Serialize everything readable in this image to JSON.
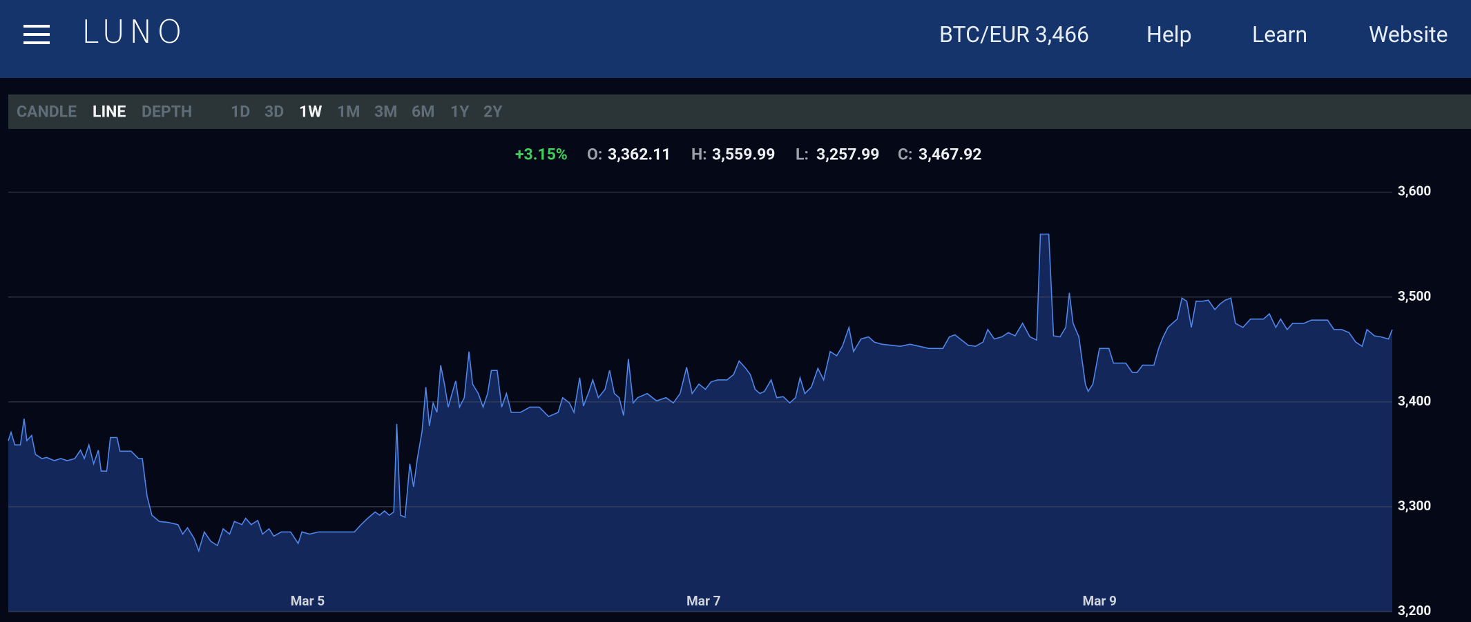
{
  "header": {
    "logo": "LUNO",
    "nav": [
      "BTC/EUR 3,466",
      "Help",
      "Learn",
      "Website"
    ]
  },
  "toolbar": {
    "chart_types": [
      "CANDLE",
      "LINE",
      "DEPTH"
    ],
    "ranges": [
      "1D",
      "3D",
      "1W",
      "1M",
      "3M",
      "6M",
      "1Y",
      "2Y"
    ]
  },
  "stats": {
    "change": "+3.15%",
    "open_label": "O:",
    "open": "3,362.11",
    "high_label": "H:",
    "high": "3,559.99",
    "low_label": "L:",
    "low": "3,257.99",
    "close_label": "C:",
    "close": "3,467.92"
  },
  "chart_data": {
    "type": "area",
    "color": "#4f86ea",
    "area_color": "#13275a",
    "grid": true,
    "xlim": [
      3.488,
      10.478
    ],
    "xticks": [
      {
        "value": 5,
        "label": "Mar 5"
      },
      {
        "value": 7,
        "label": "Mar 7"
      },
      {
        "value": 9,
        "label": "Mar 9"
      }
    ],
    "ylim": [
      3200,
      3655
    ],
    "yticks": [
      {
        "value": 3200,
        "label": "3,200"
      },
      {
        "value": 3300,
        "label": "3,300"
      },
      {
        "value": 3400,
        "label": "3,400"
      },
      {
        "value": 3500,
        "label": "3,500"
      },
      {
        "value": 3600,
        "label": "3,600"
      }
    ],
    "x": [
      3.488,
      3.502,
      3.521,
      3.549,
      3.568,
      3.582,
      3.606,
      3.625,
      3.658,
      3.682,
      3.72,
      3.753,
      3.786,
      3.824,
      3.853,
      3.872,
      3.895,
      3.919,
      3.943,
      3.957,
      3.985,
      4.004,
      4.037,
      4.052,
      4.108,
      4.146,
      4.165,
      4.189,
      4.213,
      4.251,
      4.298,
      4.345,
      4.369,
      4.393,
      4.426,
      4.45,
      4.478,
      4.511,
      4.544,
      4.573,
      4.606,
      4.63,
      4.668,
      4.687,
      4.715,
      4.748,
      4.772,
      4.805,
      4.829,
      4.867,
      4.914,
      4.952,
      4.971,
      5.009,
      5.056,
      5.104,
      5.198,
      5.236,
      5.27,
      5.303,
      5.341,
      5.364,
      5.388,
      5.412,
      5.435,
      5.45,
      5.469,
      5.492,
      5.516,
      5.535,
      5.554,
      5.578,
      5.597,
      5.615,
      5.634,
      5.653,
      5.672,
      5.691,
      5.71,
      5.729,
      5.748,
      5.767,
      5.791,
      5.815,
      5.833,
      5.862,
      5.886,
      5.909,
      5.928,
      5.957,
      5.98,
      6.004,
      6.028,
      6.075,
      6.123,
      6.17,
      6.217,
      6.265,
      6.288,
      6.322,
      6.345,
      6.374,
      6.393,
      6.421,
      6.44,
      6.468,
      6.502,
      6.525,
      6.549,
      6.573,
      6.596,
      6.62,
      6.644,
      6.667,
      6.715,
      6.762,
      6.81,
      6.847,
      6.881,
      6.914,
      6.942,
      6.976,
      7.009,
      7.037,
      7.07,
      7.118,
      7.151,
      7.179,
      7.213,
      7.236,
      7.26,
      7.284,
      7.307,
      7.341,
      7.369,
      7.402,
      7.435,
      7.464,
      7.487,
      7.511,
      7.544,
      7.577,
      7.606,
      7.639,
      7.672,
      7.701,
      7.734,
      7.757,
      7.795,
      7.833,
      7.862,
      7.9,
      7.947,
      7.994,
      8.042,
      8.089,
      8.137,
      8.208,
      8.241,
      8.269,
      8.303,
      8.336,
      8.373,
      8.411,
      8.435,
      8.468,
      8.506,
      8.539,
      8.573,
      8.611,
      8.648,
      8.682,
      8.701,
      8.743,
      8.767,
      8.8,
      8.829,
      8.847,
      8.866,
      8.895,
      8.928,
      8.942,
      8.966,
      8.999,
      9.047,
      9.07,
      9.132,
      9.165,
      9.189,
      9.217,
      9.25,
      9.274,
      9.298,
      9.321,
      9.345,
      9.392,
      9.416,
      9.44,
      9.463,
      9.487,
      9.52,
      9.549,
      9.582,
      9.606,
      9.634,
      9.663,
      9.686,
      9.724,
      9.762,
      9.795,
      9.828,
      9.857,
      9.89,
      9.914,
      9.947,
      9.975,
      10.032,
      10.07,
      10.103,
      10.151,
      10.184,
      10.222,
      10.26,
      10.293,
      10.326,
      10.35,
      10.388,
      10.421,
      10.459,
      10.478
    ],
    "values": [
      3363,
      3371,
      3359,
      3359,
      3384,
      3363,
      3368,
      3350,
      3346,
      3347,
      3344,
      3346,
      3344,
      3346,
      3354,
      3346,
      3359,
      3341,
      3354,
      3334,
      3334,
      3366,
      3366,
      3353,
      3353,
      3346,
      3346,
      3310,
      3292,
      3286,
      3285,
      3283,
      3274,
      3280,
      3270,
      3258,
      3276,
      3267,
      3263,
      3279,
      3274,
      3286,
      3283,
      3289,
      3283,
      3287,
      3274,
      3279,
      3272,
      3276,
      3276,
      3265,
      3276,
      3274,
      3276,
      3276,
      3276,
      3276,
      3283,
      3289,
      3295,
      3292,
      3296,
      3292,
      3295,
      3379,
      3292,
      3290,
      3341,
      3319,
      3346,
      3372,
      3414,
      3377,
      3399,
      3390,
      3435,
      3417,
      3395,
      3408,
      3420,
      3395,
      3404,
      3448,
      3417,
      3408,
      3395,
      3408,
      3430,
      3430,
      3395,
      3408,
      3390,
      3390,
      3395,
      3395,
      3386,
      3390,
      3404,
      3399,
      3390,
      3423,
      3396,
      3410,
      3421,
      3404,
      3412,
      3430,
      3408,
      3404,
      3387,
      3441,
      3399,
      3404,
      3408,
      3401,
      3404,
      3399,
      3408,
      3433,
      3408,
      3417,
      3412,
      3419,
      3421,
      3421,
      3426,
      3439,
      3432,
      3426,
      3412,
      3408,
      3410,
      3421,
      3404,
      3405,
      3399,
      3404,
      3423,
      3408,
      3414,
      3432,
      3421,
      3448,
      3444,
      3453,
      3471,
      3448,
      3460,
      3462,
      3457,
      3455,
      3454,
      3453,
      3455,
      3453,
      3451,
      3451,
      3462,
      3464,
      3459,
      3454,
      3453,
      3457,
      3469,
      3460,
      3462,
      3466,
      3463,
      3475,
      3462,
      3459,
      3560,
      3560,
      3463,
      3462,
      3471,
      3504,
      3475,
      3462,
      3417,
      3410,
      3417,
      3451,
      3451,
      3437,
      3437,
      3428,
      3428,
      3435,
      3435,
      3435,
      3451,
      3462,
      3471,
      3479,
      3499,
      3496,
      3471,
      3496,
      3496,
      3497,
      3488,
      3493,
      3497,
      3499,
      3475,
      3471,
      3479,
      3479,
      3479,
      3484,
      3471,
      3479,
      3469,
      3475,
      3475,
      3478,
      3478,
      3478,
      3469,
      3469,
      3466,
      3457,
      3453,
      3469,
      3463,
      3462,
      3460,
      3469
    ]
  }
}
